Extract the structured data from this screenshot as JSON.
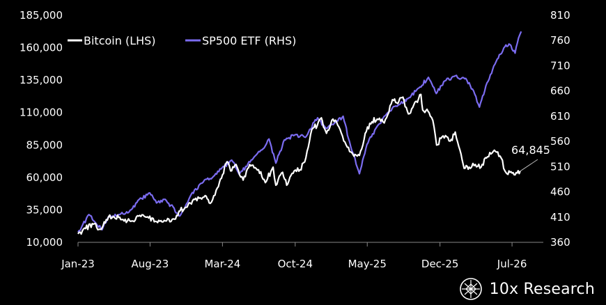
{
  "branding": {
    "name": "10x Research"
  },
  "colors": {
    "background": "#000000",
    "bitcoin": "#ffffff",
    "sp500": "#7b6cf0",
    "axis": "#888888"
  },
  "chart_data": {
    "type": "line",
    "title": "",
    "x_tick_labels": [
      "Jan-23",
      "Aug-23",
      "Mar-24",
      "Oct-24",
      "May-25",
      "Dec-25",
      "Jul-26"
    ],
    "y_left": {
      "ticks": [
        "185,000",
        "160,000",
        "135,000",
        "110,000",
        "85,000",
        "60,000",
        "35,000",
        "10,000"
      ],
      "range": [
        10000,
        185000
      ]
    },
    "y_right": {
      "ticks": [
        "810",
        "760",
        "710",
        "660",
        "610",
        "560",
        "510",
        "460",
        "410",
        "360"
      ],
      "range": [
        360,
        810
      ]
    },
    "legend": {
      "placement": "top-left",
      "entries": [
        "Bitcoin (LHS)",
        "SP500 ETF (RHS)"
      ]
    },
    "grid": false,
    "annotation": {
      "text": "64,845"
    },
    "series": [
      {
        "name": "Bitcoin (LHS)",
        "axis": "left",
        "color": "#ffffff",
        "points": [
          [
            "2023-01-01",
            16500
          ],
          [
            "2023-01-20",
            21000
          ],
          [
            "2023-02-15",
            24000
          ],
          [
            "2023-03-10",
            20000
          ],
          [
            "2023-03-25",
            27500
          ],
          [
            "2023-04-15",
            30000
          ],
          [
            "2023-05-10",
            27500
          ],
          [
            "2023-06-15",
            26000
          ],
          [
            "2023-06-25",
            30500
          ],
          [
            "2023-07-15",
            30000
          ],
          [
            "2023-08-20",
            26000
          ],
          [
            "2023-09-15",
            26500
          ],
          [
            "2023-10-15",
            28000
          ],
          [
            "2023-10-25",
            34000
          ],
          [
            "2023-11-15",
            37000
          ],
          [
            "2023-12-10",
            43000
          ],
          [
            "2024-01-10",
            46000
          ],
          [
            "2024-01-25",
            40000
          ],
          [
            "2024-02-15",
            52000
          ],
          [
            "2024-03-01",
            62000
          ],
          [
            "2024-03-14",
            72000
          ],
          [
            "2024-03-25",
            65000
          ],
          [
            "2024-04-10",
            70000
          ],
          [
            "2024-05-01",
            58000
          ],
          [
            "2024-05-20",
            70000
          ],
          [
            "2024-06-15",
            66000
          ],
          [
            "2024-07-05",
            56000
          ],
          [
            "2024-07-28",
            68000
          ],
          [
            "2024-08-05",
            54000
          ],
          [
            "2024-08-25",
            64000
          ],
          [
            "2024-09-06",
            54000
          ],
          [
            "2024-09-28",
            65000
          ],
          [
            "2024-10-15",
            66000
          ],
          [
            "2024-10-29",
            72000
          ],
          [
            "2024-11-12",
            88000
          ],
          [
            "2024-11-22",
            98000
          ],
          [
            "2024-12-05",
            100000
          ],
          [
            "2024-12-17",
            106000
          ],
          [
            "2025-01-01",
            94000
          ],
          [
            "2025-01-20",
            105000
          ],
          [
            "2025-02-10",
            97000
          ],
          [
            "2025-02-28",
            85000
          ],
          [
            "2025-03-10",
            80000
          ],
          [
            "2025-04-08",
            77000
          ],
          [
            "2025-04-25",
            94000
          ],
          [
            "2025-05-15",
            103000
          ],
          [
            "2025-05-30",
            105000
          ],
          [
            "2025-06-20",
            102000
          ],
          [
            "2025-07-14",
            120000
          ],
          [
            "2025-07-30",
            117000
          ],
          [
            "2025-08-14",
            122000
          ],
          [
            "2025-08-30",
            109000
          ],
          [
            "2025-09-15",
            116000
          ],
          [
            "2025-10-06",
            124000
          ],
          [
            "2025-10-11",
            112000
          ],
          [
            "2025-10-30",
            110000
          ],
          [
            "2025-11-10",
            104000
          ],
          [
            "2025-11-21",
            85000
          ],
          [
            "2025-12-10",
            92000
          ],
          [
            "2025-12-31",
            88000
          ],
          [
            "2026-01-15",
            95000
          ],
          [
            "2026-02-01",
            78000
          ],
          [
            "2026-02-10",
            67000
          ],
          [
            "2026-02-25",
            68000
          ],
          [
            "2026-03-15",
            70000
          ],
          [
            "2026-04-01",
            68000
          ],
          [
            "2026-04-20",
            76000
          ],
          [
            "2026-05-10",
            81000
          ],
          [
            "2026-05-30",
            75000
          ],
          [
            "2026-06-10",
            65000
          ],
          [
            "2026-06-25",
            64000
          ],
          [
            "2026-07-10",
            62000
          ],
          [
            "2026-07-25",
            64845
          ]
        ]
      },
      {
        "name": "SP500 ETF (RHS)",
        "axis": "right",
        "color": "#7b6cf0",
        "points": [
          [
            "2023-01-01",
            380
          ],
          [
            "2023-01-15",
            395
          ],
          [
            "2023-02-02",
            415
          ],
          [
            "2023-02-20",
            400
          ],
          [
            "2023-03-13",
            385
          ],
          [
            "2023-03-31",
            410
          ],
          [
            "2023-04-30",
            415
          ],
          [
            "2023-05-31",
            420
          ],
          [
            "2023-06-30",
            445
          ],
          [
            "2023-07-31",
            458
          ],
          [
            "2023-08-20",
            438
          ],
          [
            "2023-09-15",
            445
          ],
          [
            "2023-10-27",
            412
          ],
          [
            "2023-11-30",
            455
          ],
          [
            "2023-12-29",
            477
          ],
          [
            "2024-01-31",
            488
          ],
          [
            "2024-02-29",
            508
          ],
          [
            "2024-03-28",
            523
          ],
          [
            "2024-04-19",
            495
          ],
          [
            "2024-05-31",
            527
          ],
          [
            "2024-06-28",
            545
          ],
          [
            "2024-07-16",
            565
          ],
          [
            "2024-08-05",
            517
          ],
          [
            "2024-08-30",
            563
          ],
          [
            "2024-09-30",
            573
          ],
          [
            "2024-10-31",
            568
          ],
          [
            "2024-11-29",
            603
          ],
          [
            "2024-12-06",
            607
          ],
          [
            "2024-12-31",
            586
          ],
          [
            "2025-01-31",
            601
          ],
          [
            "2025-02-19",
            610
          ],
          [
            "2025-03-13",
            551
          ],
          [
            "2025-04-08",
            496
          ],
          [
            "2025-04-30",
            554
          ],
          [
            "2025-05-30",
            590
          ],
          [
            "2025-06-30",
            617
          ],
          [
            "2025-07-31",
            632
          ],
          [
            "2025-08-29",
            645
          ],
          [
            "2025-09-30",
            666
          ],
          [
            "2025-10-28",
            687
          ],
          [
            "2025-11-20",
            655
          ],
          [
            "2025-12-15",
            680
          ],
          [
            "2026-01-15",
            690
          ],
          [
            "2026-02-15",
            685
          ],
          [
            "2026-03-10",
            660
          ],
          [
            "2026-03-27",
            628
          ],
          [
            "2026-04-15",
            670
          ],
          [
            "2026-05-15",
            718
          ],
          [
            "2026-06-10",
            748
          ],
          [
            "2026-06-25",
            752
          ],
          [
            "2026-07-10",
            735
          ],
          [
            "2026-07-20",
            765
          ],
          [
            "2026-07-28",
            778
          ]
        ]
      }
    ]
  }
}
